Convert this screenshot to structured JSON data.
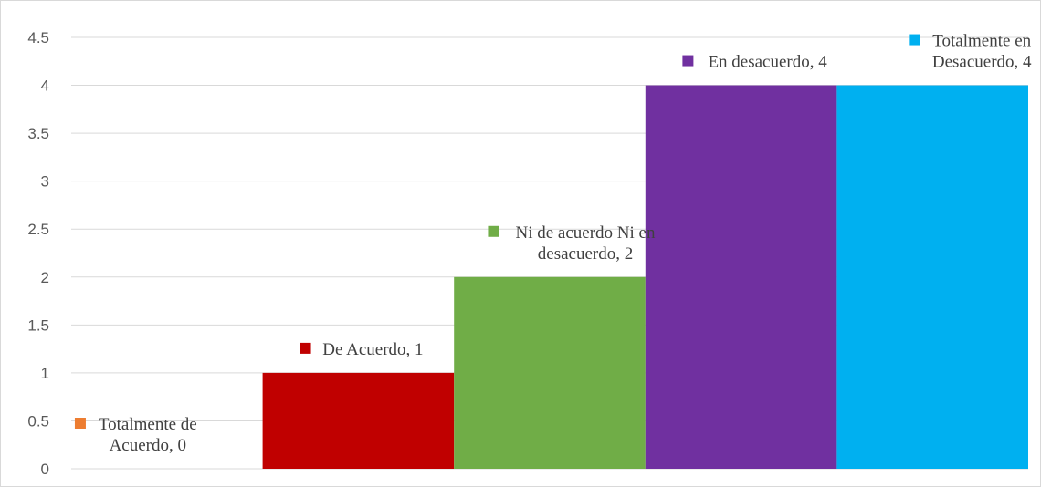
{
  "chart_data": {
    "type": "bar",
    "categories": [
      "Totalmente de Acuerdo",
      "De Acuerdo",
      "Ni de acuerdo Ni en desacuerdo",
      "En desacuerdo",
      "Totalmente en Desacuerdo"
    ],
    "values": [
      0,
      1,
      2,
      4,
      4
    ],
    "colors": [
      "#ED7D31",
      "#C00000",
      "#70AD47",
      "#7030A0",
      "#00B0F0"
    ],
    "data_labels": [
      [
        "Totalmente de",
        "Acuerdo, 0"
      ],
      [
        "De Acuerdo, 1"
      ],
      [
        "Ni de acuerdo Ni en",
        "desacuerdo, 2"
      ],
      [
        "En desacuerdo, 4"
      ],
      [
        "Totalmente en",
        "Desacuerdo, 4"
      ]
    ],
    "ylim": [
      0,
      4.5
    ],
    "yticks": [
      0,
      0.5,
      1,
      1.5,
      2,
      2.5,
      3,
      3.5,
      4,
      4.5
    ],
    "ytick_labels": [
      "0",
      "0.5",
      "1",
      "1.5",
      "2",
      "2.5",
      "3",
      "3.5",
      "4",
      "4.5"
    ],
    "grid": true,
    "title": "",
    "xlabel": "",
    "ylabel": ""
  }
}
